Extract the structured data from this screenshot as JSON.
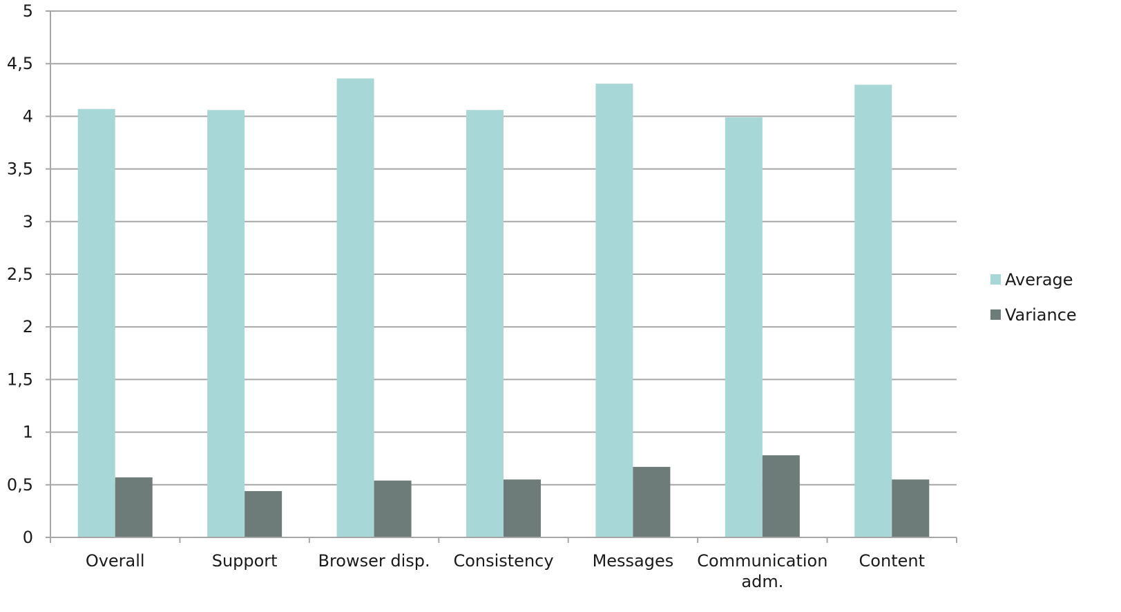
{
  "chart_data": {
    "type": "bar",
    "categories": [
      [
        "Overall"
      ],
      [
        "Support"
      ],
      [
        "Browser disp."
      ],
      [
        "Consistency"
      ],
      [
        "Messages"
      ],
      [
        "Communication",
        "adm."
      ],
      [
        "Content"
      ]
    ],
    "series": [
      {
        "name": "Average",
        "color": "#a7d7d6",
        "values": [
          4.07,
          4.06,
          4.36,
          4.06,
          4.31,
          3.99,
          4.3
        ]
      },
      {
        "name": "Variance",
        "color": "#6d7b79",
        "values": [
          0.57,
          0.44,
          0.54,
          0.55,
          0.67,
          0.78,
          0.55
        ]
      }
    ],
    "y_ticks": [
      "0",
      "0,5",
      "1",
      "1,5",
      "2",
      "2,5",
      "3",
      "3,5",
      "4",
      "4,5",
      "5"
    ],
    "ylim": [
      0,
      5
    ],
    "grid": true,
    "legend": "right",
    "title": "",
    "xlabel": "",
    "ylabel": ""
  }
}
